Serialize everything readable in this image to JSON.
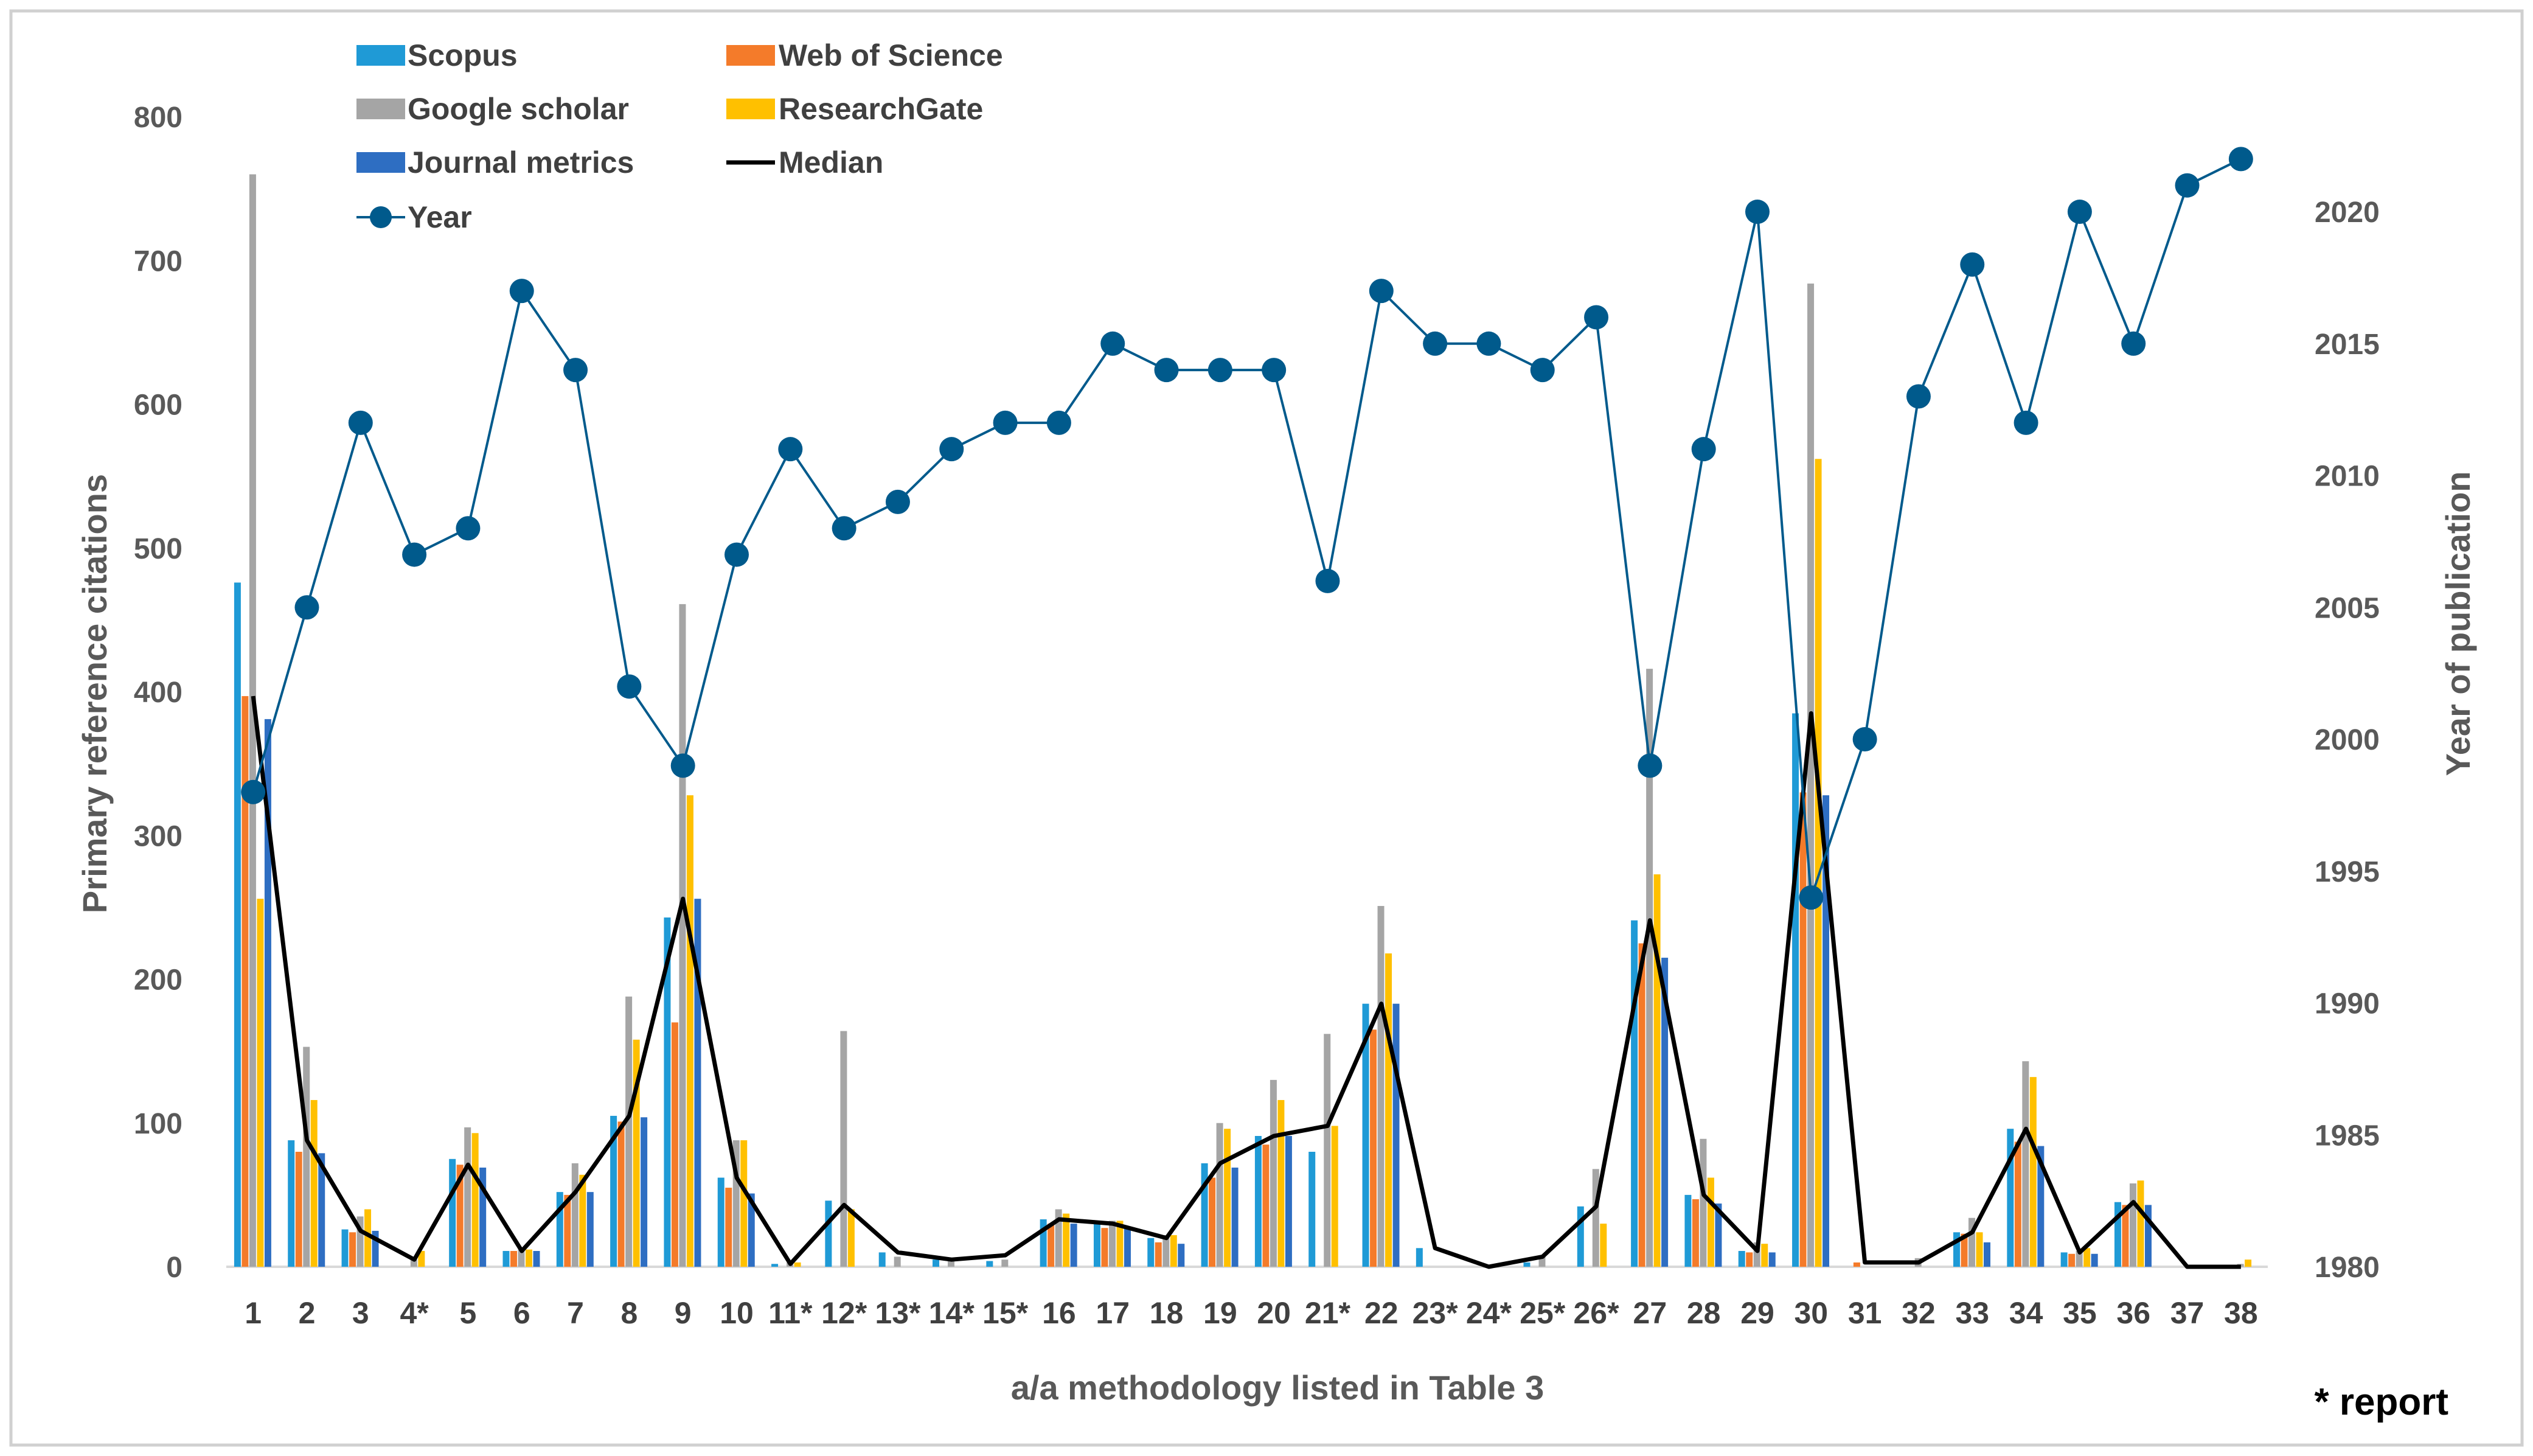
{
  "chart_data": {
    "type": "bar",
    "xlabel": "a/a methodology listed in Table 3",
    "ylabel": "Primary reference citations",
    "y2label": "Year of publication",
    "note": "* report",
    "ylim": [
      0,
      800
    ],
    "yticks": [
      0,
      100,
      200,
      300,
      400,
      500,
      600,
      700,
      800
    ],
    "y2lim": [
      1980,
      2023
    ],
    "y2ticks": [
      1980,
      1985,
      1990,
      1995,
      2000,
      2005,
      2010,
      2015,
      2020
    ],
    "categories": [
      "1",
      "2",
      "3",
      "4*",
      "5",
      "6",
      "7",
      "8",
      "9",
      "10",
      "11*",
      "12*",
      "13*",
      "14*",
      "15*",
      "16",
      "17",
      "18",
      "19",
      "20",
      "21*",
      "22",
      "23*",
      "24*",
      "25*",
      "26*",
      "27",
      "28",
      "29",
      "30",
      "31",
      "32",
      "33",
      "34",
      "35",
      "36",
      "37",
      "38"
    ],
    "series": [
      {
        "name": "Scopus",
        "color": "#1f9ad6",
        "values": [
          476,
          88,
          26,
          0,
          75,
          11,
          52,
          105,
          243,
          62,
          2,
          46,
          10,
          5,
          4,
          33,
          30,
          20,
          72,
          91,
          80,
          183,
          13,
          0,
          3,
          42,
          241,
          50,
          11,
          385,
          0,
          0,
          24,
          96,
          10,
          45,
          0,
          0
        ]
      },
      {
        "name": "Web of Science",
        "color": "#f47b2a",
        "values": [
          397,
          80,
          24,
          0,
          71,
          11,
          50,
          101,
          170,
          55,
          0,
          0,
          0,
          0,
          0,
          30,
          27,
          17,
          62,
          85,
          0,
          165,
          0,
          0,
          0,
          0,
          225,
          47,
          10,
          330,
          3,
          0,
          23,
          87,
          9,
          43,
          0,
          0
        ]
      },
      {
        "name": "Google scholar",
        "color": "#a5a5a5",
        "values": [
          760,
          153,
          35,
          5,
          97,
          12,
          72,
          188,
          461,
          88,
          3,
          164,
          7,
          4,
          5,
          40,
          32,
          22,
          100,
          130,
          162,
          251,
          0,
          0,
          8,
          68,
          416,
          89,
          17,
          684,
          0,
          6,
          34,
          143,
          11,
          58,
          0,
          2
        ]
      },
      {
        "name": "ResearchGate",
        "color": "#ffc000",
        "values": [
          256,
          116,
          40,
          11,
          93,
          12,
          64,
          158,
          328,
          88,
          3,
          40,
          0,
          0,
          0,
          37,
          32,
          22,
          96,
          116,
          98,
          218,
          0,
          0,
          0,
          30,
          273,
          62,
          16,
          562,
          0,
          0,
          24,
          132,
          13,
          60,
          0,
          5
        ]
      },
      {
        "name": "Journal metrics",
        "color": "#2e6ec2",
        "values": [
          381,
          79,
          25,
          0,
          69,
          11,
          52,
          104,
          256,
          51,
          0,
          0,
          0,
          0,
          0,
          30,
          28,
          16,
          69,
          91,
          0,
          183,
          0,
          0,
          0,
          0,
          215,
          44,
          10,
          328,
          0,
          0,
          17,
          84,
          9,
          43,
          0,
          0
        ]
      }
    ],
    "median": {
      "name": "Median",
      "color": "#000000",
      "values": [
        397,
        88,
        25,
        5,
        71,
        11,
        52,
        105,
        256,
        62,
        2,
        43,
        10,
        5,
        8,
        33,
        30,
        20,
        72,
        91,
        98,
        183,
        13,
        0,
        7,
        42,
        241,
        50,
        11,
        385,
        3,
        3,
        24,
        96,
        10,
        45,
        0,
        0
      ]
    },
    "year": {
      "name": "Year",
      "color": "#005a8c",
      "values": [
        1998,
        2005,
        2012,
        2007,
        2008,
        2017,
        2014,
        2002,
        1999,
        2007,
        2011,
        2008,
        2009,
        2011,
        2012,
        2012,
        2015,
        2014,
        2014,
        2014,
        2006,
        2017,
        2015,
        2015,
        2014,
        2016,
        1999,
        2011,
        2020,
        1994,
        2000,
        2013,
        2018,
        2012,
        2020,
        2015,
        2021,
        2022
      ]
    }
  }
}
